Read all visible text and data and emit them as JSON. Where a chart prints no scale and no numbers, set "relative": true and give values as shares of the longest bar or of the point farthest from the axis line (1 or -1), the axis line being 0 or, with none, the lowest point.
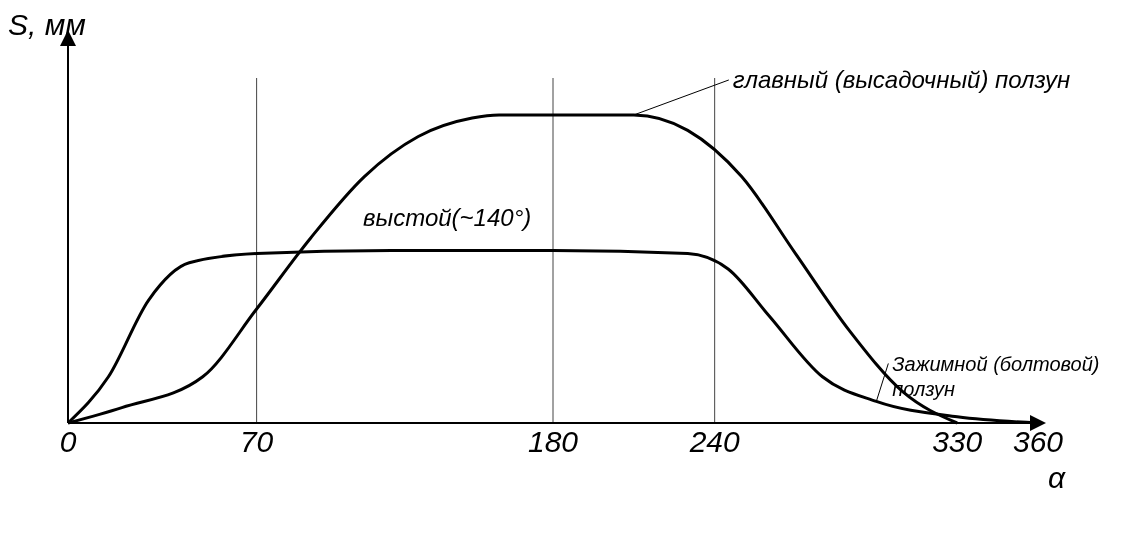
{
  "chart_data": {
    "type": "line",
    "relative": true,
    "xlabel": "α",
    "ylabel": "S, мм",
    "xlim": [
      0,
      360
    ],
    "xticks": [
      0,
      70,
      180,
      240,
      330,
      360
    ],
    "marker": "none",
    "line_style": "solid",
    "annotations": [
      "выстой(~140°)"
    ],
    "ref_lines": [
      {
        "axis": "x",
        "value": 70,
        "color": "#444444"
      },
      {
        "axis": "x",
        "value": 180,
        "color": "#444444"
      },
      {
        "axis": "x",
        "value": 240,
        "color": "#444444"
      }
    ],
    "series": [
      {
        "name": "главный (высадочный) ползун",
        "color": "#000000",
        "x": [
          0,
          20,
          50,
          70,
          90,
          110,
          130,
          150,
          160,
          180,
          210,
          230,
          250,
          270,
          290,
          310,
          330
        ],
        "values": [
          0,
          0.05,
          0.15,
          0.37,
          0.6,
          0.8,
          0.93,
          0.99,
          1,
          1,
          1,
          0.95,
          0.8,
          0.55,
          0.3,
          0.1,
          0
        ]
      },
      {
        "name": "Зажимной (болтовой) ползун",
        "color": "#000000",
        "x": [
          0,
          15,
          30,
          45,
          70,
          120,
          180,
          230,
          245,
          260,
          280,
          300,
          330,
          360
        ],
        "values": [
          0,
          0.15,
          0.4,
          0.52,
          0.55,
          0.56,
          0.56,
          0.55,
          0.5,
          0.35,
          0.15,
          0.07,
          0.02,
          0
        ]
      }
    ]
  }
}
